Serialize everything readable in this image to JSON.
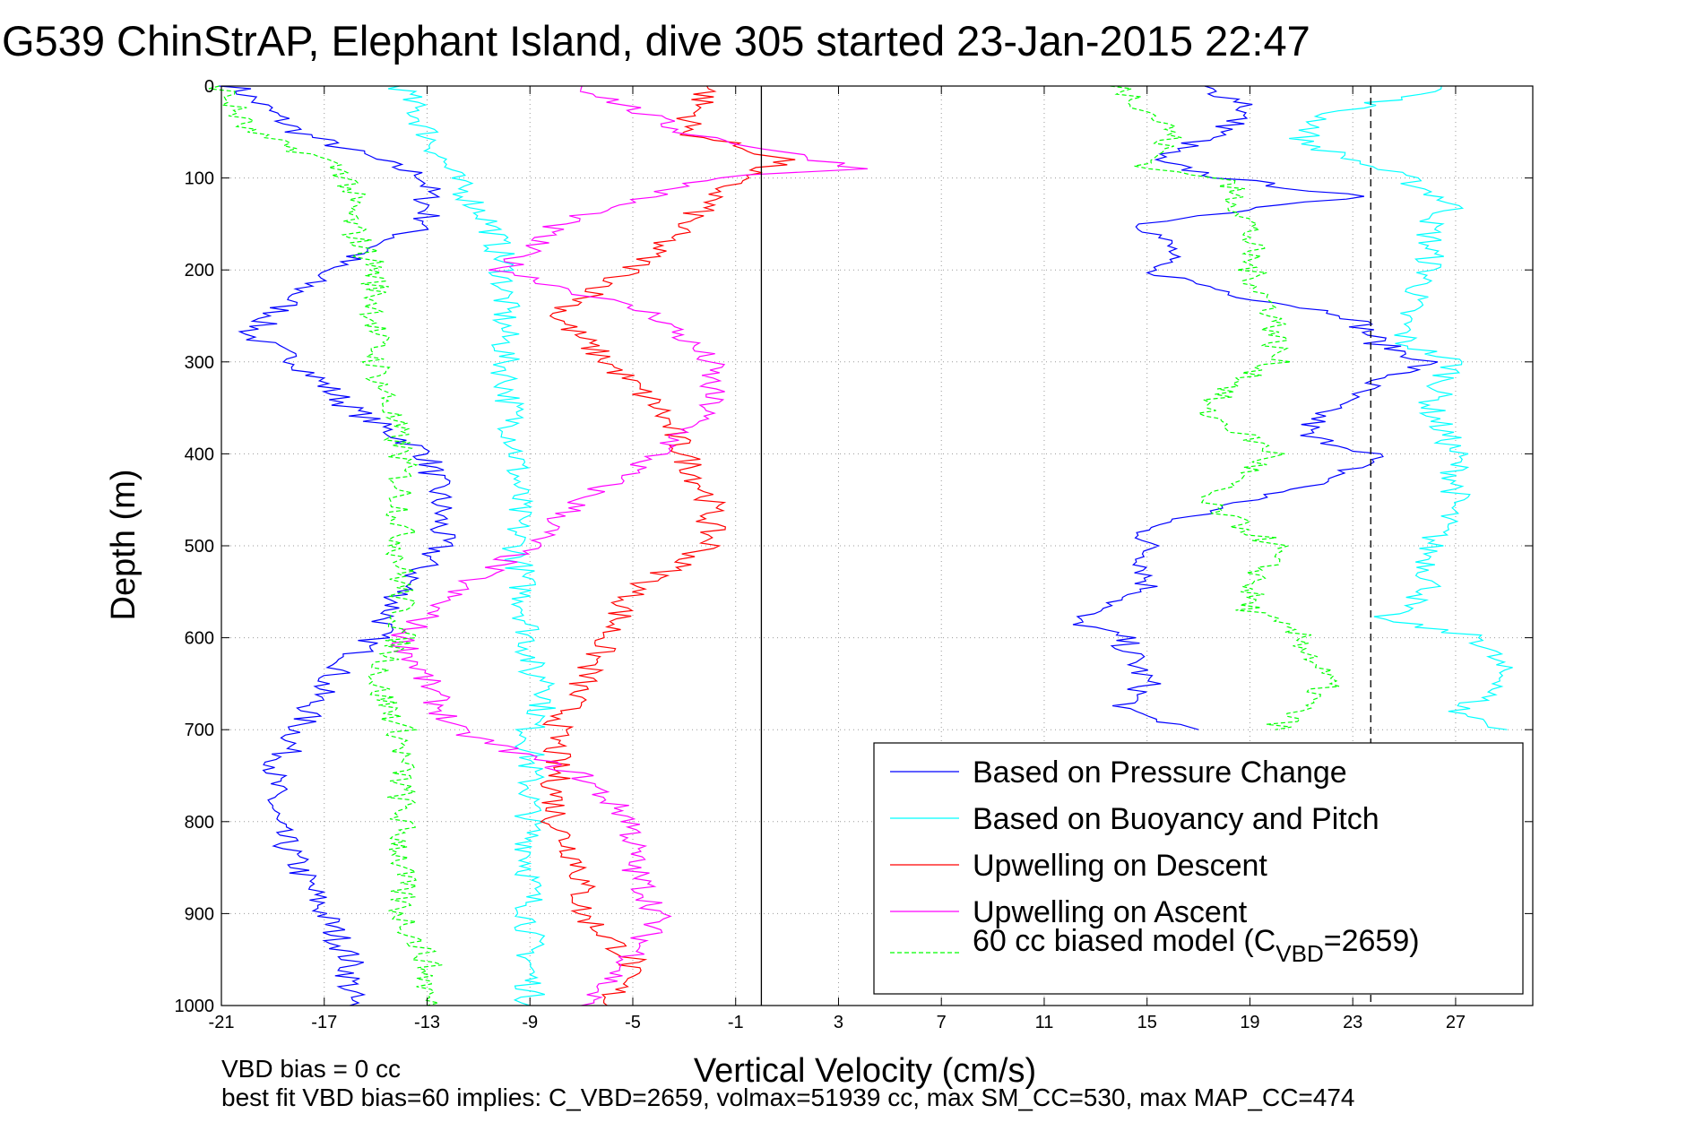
{
  "colors": {
    "pressure": "#0000ff",
    "buoyancy": "#00ffff",
    "descent": "#ff0000",
    "ascent": "#ff00ff",
    "model": "#00ff00",
    "grid": "#9a9a9a",
    "axis": "#000000"
  },
  "chart_data": {
    "type": "line",
    "title": "G539 ChinStrAP, Elephant Island, dive 305 started 23-Jan-2015 22:47",
    "xlabel": "Vertical Velocity (cm/s)",
    "ylabel": "Depth (m)",
    "xlim": [
      -21,
      30
    ],
    "ylim": [
      0,
      1000
    ],
    "y_reversed": true,
    "grid": "dotted",
    "xticks": [
      -21,
      -17,
      -13,
      -9,
      -5,
      -1,
      3,
      7,
      11,
      15,
      19,
      23,
      27
    ],
    "yticks": [
      0,
      100,
      200,
      300,
      400,
      500,
      600,
      700,
      800,
      900,
      1000
    ],
    "vlines": [
      {
        "x": 0,
        "style": "solid"
      },
      {
        "x": 23.7,
        "style": "dashed"
      }
    ],
    "legend": {
      "position": "lower-right",
      "entries": [
        "Based on Pressure Change",
        "Based on Buoyancy and Pitch",
        "Upwelling on Descent",
        "Upwelling on Ascent",
        "60 cc biased model (C",
        "VBD",
        "=2659)"
      ]
    },
    "series": [
      {
        "name": "Based on Pressure Change",
        "key": "pressure",
        "style": "solid",
        "depth": [
          0,
          50,
          100,
          150,
          200,
          250,
          270,
          300,
          350,
          400,
          450,
          500,
          550,
          600,
          650,
          700,
          750,
          800,
          850,
          900,
          950,
          1000
        ],
        "x": [
          -20.5,
          -18,
          -13,
          -13,
          -17,
          -19,
          -20,
          -18,
          -16,
          -13,
          -12.5,
          -12.5,
          -14,
          -15,
          -17,
          -18,
          -19,
          -19,
          -18,
          -17,
          -16,
          -16
        ]
      },
      {
        "name": "Based on Pressure Change",
        "key": "pressure",
        "style": "solid",
        "depth": [
          0,
          20,
          50,
          80,
          100,
          120,
          150,
          180,
          200,
          230,
          250,
          280,
          300,
          320,
          350,
          380,
          400,
          430,
          450,
          480,
          500,
          550,
          580,
          600,
          650,
          680,
          700
        ],
        "x": [
          17,
          19,
          18,
          15,
          18,
          23,
          15,
          16,
          15,
          19,
          23,
          24,
          26,
          24,
          22,
          21,
          24,
          22,
          19,
          15,
          15,
          15,
          12,
          14,
          15,
          14,
          17
        ]
      },
      {
        "name": "Based on Buoyancy and Pitch",
        "key": "buoyancy",
        "style": "solid",
        "depth": [
          0,
          50,
          100,
          150,
          200,
          300,
          400,
          500,
          600,
          640,
          650,
          700,
          800,
          900,
          1000
        ],
        "x": [
          -14,
          -13,
          -12,
          -10.5,
          -10,
          -10,
          -9.5,
          -9.5,
          -9,
          -9,
          -8,
          -9,
          -9,
          -9,
          -9
        ]
      },
      {
        "name": "Based on Buoyancy and Pitch",
        "key": "buoyancy",
        "style": "solid",
        "depth": [
          0,
          30,
          60,
          100,
          130,
          150,
          200,
          250,
          280,
          300,
          350,
          400,
          450,
          500,
          550,
          580,
          600,
          650,
          680,
          700
        ],
        "x": [
          27,
          22,
          21,
          25,
          27,
          26,
          26,
          25,
          25,
          27,
          26,
          27,
          27,
          26,
          26,
          24,
          28,
          29,
          27,
          29
        ]
      },
      {
        "name": "Upwelling on Descent",
        "key": "descent",
        "style": "solid",
        "depth": [
          0,
          50,
          80,
          100,
          150,
          200,
          250,
          300,
          350,
          400,
          450,
          500,
          550,
          600,
          650,
          700,
          750,
          800,
          850,
          900,
          950,
          1000
        ],
        "x": [
          -2,
          -3,
          1,
          -1,
          -3,
          -5,
          -8,
          -6,
          -4,
          -3,
          -2,
          -2,
          -5,
          -6,
          -7,
          -8,
          -8,
          -8,
          -7,
          -7,
          -5,
          -6
        ]
      },
      {
        "name": "Upwelling on Ascent",
        "key": "ascent",
        "style": "solid",
        "depth": [
          0,
          50,
          90,
          100,
          150,
          200,
          250,
          300,
          350,
          400,
          450,
          500,
          550,
          600,
          650,
          700,
          750,
          800,
          850,
          900,
          950,
          1000
        ],
        "x": [
          -7,
          -3,
          4,
          -2,
          -8,
          -10,
          -4,
          -2,
          -2,
          -4,
          -7,
          -9,
          -12,
          -14,
          -13,
          -12,
          -7,
          -5,
          -5,
          -4,
          -5,
          -7
        ]
      },
      {
        "name": "60 cc biased model (CVBD=2659)",
        "key": "model",
        "style": "dashed",
        "depth": [
          0,
          50,
          80,
          100,
          150,
          200,
          300,
          400,
          500,
          600,
          650,
          700,
          750,
          800,
          900,
          950,
          1000
        ],
        "x": [
          -21,
          -20,
          -17,
          -16,
          -16,
          -15,
          -15,
          -14,
          -14,
          -14,
          -15,
          -14,
          -14,
          -14,
          -14,
          -13,
          -13
        ]
      },
      {
        "name": "60 cc biased model (CVBD=2659)",
        "key": "model",
        "style": "dashed",
        "depth": [
          0,
          50,
          90,
          100,
          150,
          200,
          250,
          300,
          350,
          400,
          450,
          500,
          550,
          570,
          600,
          650,
          700
        ],
        "x": [
          14,
          16,
          15,
          18,
          19,
          19,
          20,
          20,
          17,
          20,
          17,
          20,
          19,
          19,
          21,
          22,
          20
        ]
      }
    ]
  },
  "footer": {
    "line1": "VBD bias = 0 cc",
    "line2": "best fit VBD bias=60 implies: C_VBD=2659, volmax=51939 cc, max SM_CC=530, max MAP_CC=474"
  }
}
